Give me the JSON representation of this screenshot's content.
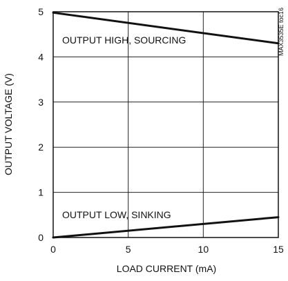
{
  "chart_data": {
    "type": "line",
    "xlabel": "LOAD CURRENT (mA)",
    "ylabel": "OUTPUT VOLTAGE (V)",
    "xlim": [
      0,
      15
    ],
    "ylim": [
      0,
      5
    ],
    "x_ticks": [
      0,
      5,
      10,
      15
    ],
    "y_ticks": [
      0,
      1,
      2,
      3,
      4,
      5
    ],
    "grid": true,
    "series": [
      {
        "name": "OUTPUT HIGH, SOURCING",
        "x": [
          0,
          15
        ],
        "y": [
          4.98,
          4.3
        ]
      },
      {
        "name": "OUTPUT LOW, SINKING",
        "x": [
          0,
          15
        ],
        "y": [
          0.0,
          0.45
        ]
      }
    ],
    "annotations": [
      "MAX3535E toc16"
    ]
  },
  "colors": {
    "line": "#111111",
    "grid": "#222222",
    "frame": "#111111"
  }
}
